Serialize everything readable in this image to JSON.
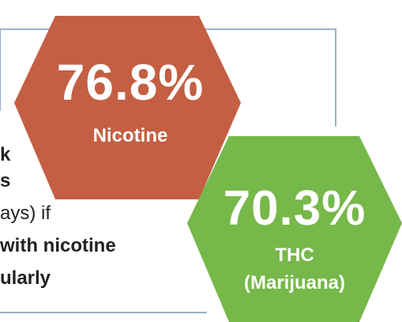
{
  "colors": {
    "nicotine_hex": "#c45f43",
    "thc_hex": "#76b84a",
    "frame_line": "#9ab0c8",
    "text": "#222222"
  },
  "nicotine": {
    "value": "76.8%",
    "label": "Nicotine"
  },
  "thc": {
    "value": "70.3%",
    "label_line1": "THC",
    "label_line2": "(Marijuana)"
  },
  "description": {
    "line1": "k",
    "line2": "s",
    "line3": "ays) if",
    "line4": "with nicotine",
    "line5": "ularly"
  }
}
